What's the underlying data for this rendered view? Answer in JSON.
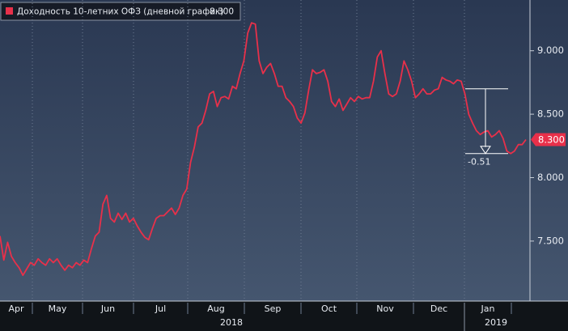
{
  "chart_data": {
    "type": "line",
    "legend": "Доходность 10-летних ОФЗ (дневной график)",
    "last_value_label": "8.300",
    "months": [
      "Apr",
      "May",
      "Jun",
      "Jul",
      "Aug",
      "Sep",
      "Oct",
      "Nov",
      "Dec",
      "Jan"
    ],
    "years": [
      "2018",
      "2019"
    ],
    "series": [
      {
        "name": "Доходность 10-летних ОФЗ (дневной график)",
        "color": "#e8304a",
        "values": [
          7.54,
          7.35,
          7.49,
          7.38,
          7.33,
          7.29,
          7.23,
          7.28,
          7.33,
          7.31,
          7.36,
          7.33,
          7.31,
          7.36,
          7.33,
          7.36,
          7.31,
          7.27,
          7.31,
          7.29,
          7.33,
          7.31,
          7.35,
          7.33,
          7.44,
          7.54,
          7.57,
          7.79,
          7.86,
          7.68,
          7.65,
          7.72,
          7.67,
          7.72,
          7.65,
          7.68,
          7.62,
          7.57,
          7.53,
          7.51,
          7.6,
          7.68,
          7.7,
          7.7,
          7.73,
          7.76,
          7.71,
          7.76,
          7.86,
          7.91,
          8.12,
          8.24,
          8.4,
          8.43,
          8.53,
          8.66,
          8.68,
          8.56,
          8.63,
          8.64,
          8.62,
          8.72,
          8.7,
          8.82,
          8.92,
          9.14,
          9.22,
          9.21,
          8.92,
          8.82,
          8.87,
          8.9,
          8.82,
          8.72,
          8.72,
          8.63,
          8.6,
          8.56,
          8.47,
          8.43,
          8.51,
          8.69,
          8.85,
          8.82,
          8.83,
          8.85,
          8.76,
          8.6,
          8.56,
          8.62,
          8.53,
          8.58,
          8.63,
          8.6,
          8.64,
          8.62,
          8.63,
          8.63,
          8.76,
          8.95,
          9.0,
          8.82,
          8.66,
          8.64,
          8.66,
          8.76,
          8.92,
          8.85,
          8.76,
          8.63,
          8.66,
          8.7,
          8.66,
          8.66,
          8.69,
          8.7,
          8.79,
          8.77,
          8.76,
          8.74,
          8.77,
          8.76,
          8.66,
          8.5,
          8.43,
          8.37,
          8.34,
          8.36,
          8.37,
          8.32,
          8.34,
          8.37,
          8.31,
          8.21,
          8.19,
          8.21,
          8.26,
          8.26,
          8.3
        ]
      }
    ],
    "ylim": [
      7.04,
      9.4
    ],
    "yticks": [
      {
        "value": 7.5,
        "label": "7.500"
      },
      {
        "value": 8,
        "label": "8.000"
      },
      {
        "value": 8.5,
        "label": "8.500"
      },
      {
        "value": 9,
        "label": "9.000"
      }
    ],
    "annotation": {
      "text": "-0.51",
      "from": 8.7,
      "to": 8.19
    },
    "grid": true
  }
}
